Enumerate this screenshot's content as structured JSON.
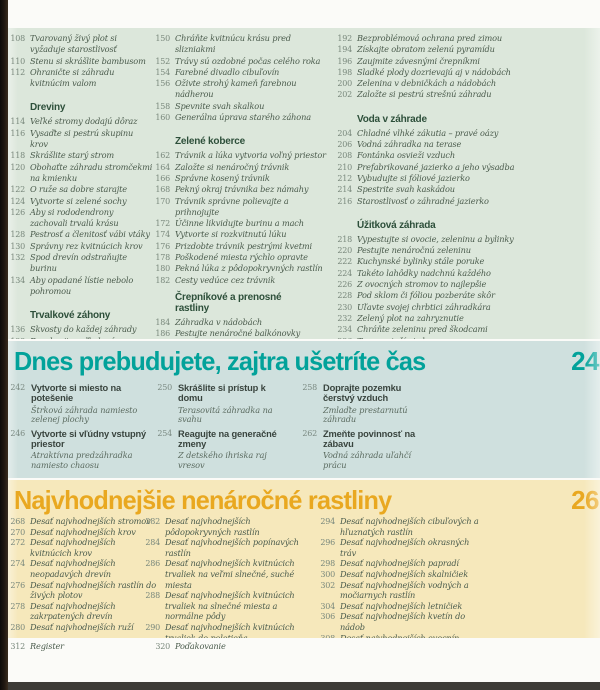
{
  "colors": {
    "top_section_bg": "#dce7db",
    "mid_section_bg": "#cfe0de",
    "mid_accent_teal": "#02a29a",
    "bottom_section_bg": "#f6e8bb",
    "bottom_accent_orange": "#e9a820",
    "entry_text": "#4a5b4c",
    "section_header_text": "#2d4f3a",
    "page_number_text": "#79887c",
    "spine_edge": "#1d1712",
    "bottom_edge": "#3d3b37"
  },
  "toc_top": {
    "col1": [
      {
        "n": "108",
        "t": "Tvarovaný živý plot si vyžaduje starostlivosť"
      },
      {
        "n": "110",
        "t": "Stenu si skrášlite bambusom"
      },
      {
        "n": "112",
        "t": "Ohraničte si záhradu kvitnúcim valom"
      },
      {
        "h": "Dreviny"
      },
      {
        "n": "114",
        "t": "Veľké stromy dodajú dôraz"
      },
      {
        "n": "116",
        "t": "Vysaďte si pestrú skupinu krov"
      },
      {
        "n": "118",
        "t": "Skrášlite starý strom"
      },
      {
        "n": "120",
        "t": "Obohaťte záhradu stromčekmi na kmienku"
      },
      {
        "n": "122",
        "t": "O ruže sa dobre starajte"
      },
      {
        "n": "124",
        "t": "Vytvorte si zelené sochy"
      },
      {
        "n": "126",
        "t": "Aby si rododendrony zachovali trvalú krásu"
      },
      {
        "n": "128",
        "t": "Pestrosť a členitosť vábi vtáky"
      },
      {
        "n": "130",
        "t": "Správny rez kvitnúcich krov"
      },
      {
        "n": "132",
        "t": "Spod drevín odstraňujte burinu"
      },
      {
        "n": "134",
        "t": "Aby opadané lístie nebolo pohromou"
      },
      {
        "h": "Trvalkové záhony"
      },
      {
        "n": "136",
        "t": "Skvosty do každej záhrady"
      },
      {
        "n": "138",
        "t": "Rozohrajte veľkolepú prehliadku"
      },
      {
        "n": "140",
        "t": "Prirodzený záhon na slnečnom mieste"
      },
      {
        "n": "142",
        "t": "Zaplňte medzery a nehostinné miesta"
      },
      {
        "n": "144",
        "t": "Divorastúce trvalky ocenia aj polotieň"
      },
      {
        "n": "146",
        "t": "Romantika ponorená do tieňa"
      },
      {
        "n": "148",
        "t": "Tienistý záhon pohltí lístie"
      }
    ],
    "col2": [
      {
        "n": "150",
        "t": "Chráňte kvitnúcu krásu pred slizniakmi"
      },
      {
        "n": "152",
        "t": "Trávy sú ozdobné počas celého roka"
      },
      {
        "n": "154",
        "t": "Farebné divadlo cibuľovín"
      },
      {
        "n": "156",
        "t": "Oživte strohý kameň farebnou nádherou"
      },
      {
        "n": "158",
        "t": "Spevnite svah skalkou"
      },
      {
        "n": "160",
        "t": "Generálna úprava starého záhona"
      },
      {
        "h": "Zelené koberce"
      },
      {
        "n": "162",
        "t": "Trávnik a lúka vytvoria voľný priestor"
      },
      {
        "n": "164",
        "t": "Založte si nenáročný trávnik"
      },
      {
        "n": "166",
        "t": "Správne kosený trávnik"
      },
      {
        "n": "168",
        "t": "Pekný okraj trávnika bez námahy"
      },
      {
        "n": "170",
        "t": "Trávnik správne polievajte a prihnojujte"
      },
      {
        "n": "172",
        "t": "Účinne likvidujte burinu a mach"
      },
      {
        "n": "174",
        "t": "Vytvorte si rozkvitnutú lúku"
      },
      {
        "n": "176",
        "t": "Prizdobte trávnik pestrými kvetmi"
      },
      {
        "n": "178",
        "t": "Poškodené miesta rýchlo opravte"
      },
      {
        "n": "180",
        "t": "Pekná lúka z pôdopokryvných rastlín"
      },
      {
        "n": "182",
        "t": "Cesty vedúce cez trávnik"
      },
      {
        "h": "Črepníkové a prenosné rastliny"
      },
      {
        "n": "184",
        "t": "Záhradka v nádobách"
      },
      {
        "n": "186",
        "t": "Pestujte nenáročné balkónovky"
      },
      {
        "n": "188",
        "t": "Pestrosť je zaručená!"
      },
      {
        "n": "190",
        "t": "Keď už v črepníku chýba miesto"
      }
    ],
    "col3": [
      {
        "n": "192",
        "t": "Bezproblémová ochrana pred zimou"
      },
      {
        "n": "194",
        "t": "Získajte obratom zelenú pyramídu"
      },
      {
        "n": "196",
        "t": "Zaujmite závesnými črepníkmi"
      },
      {
        "n": "198",
        "t": "Sladké plody dozrievajú aj v nádobách"
      },
      {
        "n": "200",
        "t": "Zelenina v debničkách a nádobách"
      },
      {
        "n": "202",
        "t": "Založte si pestrú strešnú záhradu"
      },
      {
        "h": "Voda v záhrade"
      },
      {
        "n": "204",
        "t": "Chladné vlhké zákutia – pravé oázy"
      },
      {
        "n": "206",
        "t": "Vodná záhradka na terase"
      },
      {
        "n": "208",
        "t": "Fontánka osvieži vzduch"
      },
      {
        "n": "210",
        "t": "Prefabrikované jazierko a jeho výsadba"
      },
      {
        "n": "212",
        "t": "Vybudujte si fóliové jazierko"
      },
      {
        "n": "214",
        "t": "Spestrite svah kaskádou"
      },
      {
        "n": "216",
        "t": "Starostlivosť o záhradné jazierko"
      },
      {
        "h": "Úžitková záhrada"
      },
      {
        "n": "218",
        "t": "Vypestujte si ovocie, zeleninu a bylinky"
      },
      {
        "n": "220",
        "t": "Pestujte nenáročnú zeleninu"
      },
      {
        "n": "222",
        "t": "Kuchynské bylinky stále poruke"
      },
      {
        "n": "224",
        "t": "Takéto lahôdky nadchnú každého"
      },
      {
        "n": "226",
        "t": "Z ovocných stromov to najlepšie"
      },
      {
        "n": "228",
        "t": "Pod sklom či fóliou pozberáte skôr"
      },
      {
        "n": "230",
        "t": "Uľavte svojej chrbtici záhradkára"
      },
      {
        "n": "232",
        "t": "Zelený plot na zahryznutie"
      },
      {
        "n": "234",
        "t": "Chráňte zeleninu pred škodcami"
      },
      {
        "n": "236",
        "t": "Tu sa poteší aj oko"
      },
      {
        "n": "238",
        "t": "Lemy záhonov: pekné a užitočné"
      }
    ]
  },
  "chapter_rebuild": {
    "title": "Dnes prebudujete, zajtra ušetríte čas",
    "page_number": "24",
    "col1": [
      {
        "n": "242",
        "t": "Vytvorte si miesto na potešenie",
        "s": "Štrková záhrada namiesto zelenej plochy"
      },
      {
        "n": "246",
        "t": "Vytvorte si vľúdny vstupný priestor",
        "s": "Atraktívna predzáhradka namiesto chaosu"
      }
    ],
    "col2": [
      {
        "n": "250",
        "t": "Skrášlite si prístup k domu",
        "s": "Terasovitá záhradka na svahu"
      },
      {
        "n": "254",
        "t": "Reagujte na generačné zmeny",
        "s": "Z detského ihriska raj vresov"
      }
    ],
    "col3": [
      {
        "n": "258",
        "t": "Doprajte pozemku čerstvý vzduch",
        "s": "Zmlaďte prestarnutú záhradu"
      },
      {
        "n": "262",
        "t": "Zmeňte povinnosť na zábavu",
        "s": "Vodná záhrada uľahčí prácu"
      }
    ]
  },
  "chapter_plants": {
    "title": "Najvhodnejšie nenáročné rastliny",
    "page_number": "26",
    "col1": [
      {
        "n": "268",
        "t": "Desať najvhodnejších stromov"
      },
      {
        "n": "270",
        "t": "Desať najvhodnejších krov"
      },
      {
        "n": "272",
        "t": "Desať najvhodnejších kvitnúcich krov"
      },
      {
        "n": "274",
        "t": "Desať najvhodnejších neopadavých drevín"
      },
      {
        "n": "276",
        "t": "Desať najvhodnejších rastlín do živých plotov"
      },
      {
        "n": "278",
        "t": "Desať najvhodnejších zakrpatených drevín"
      },
      {
        "n": "280",
        "t": "Desať najvhodnejších ruží"
      }
    ],
    "col2": [
      {
        "n": "282",
        "t": "Desať najvhodnejších pôdopokryvných rastlín"
      },
      {
        "n": "284",
        "t": "Desať najvhodnejších popínavých rastlín"
      },
      {
        "n": "286",
        "t": "Desať najvhodnejších kvitnúcich trvaliek na veľmi slnečné, suché miesta"
      },
      {
        "n": "288",
        "t": "Desať najvhodnejších kvitnúcich trvaliek na slnečné miesta a normálne pôdy"
      },
      {
        "n": "290",
        "t": "Desať najvhodnejších kvitnúcich trvaliek do polotieňa"
      },
      {
        "n": "292",
        "t": "Desať najvhodnejších kvitnúcich trvaliek do tieňa"
      }
    ],
    "col3": [
      {
        "n": "294",
        "t": "Desať najvhodnejších cibuľových a hľuznatých rastlín"
      },
      {
        "n": "296",
        "t": "Desať najvhodnejších okrasných tráv"
      },
      {
        "n": "298",
        "t": "Desať najvhodnejších papradí"
      },
      {
        "n": "300",
        "t": "Desať najvhodnejších skalničiek"
      },
      {
        "n": "302",
        "t": "Desať najvhodnejších vodných a močiarnych rastlín"
      },
      {
        "n": "304",
        "t": "Desať najvhodnejších letničiek"
      },
      {
        "n": "306",
        "t": "Desať najvhodnejších kvetín do nádob"
      },
      {
        "n": "308",
        "t": "Desať najvhodnejších ovocnín"
      },
      {
        "n": "310",
        "t": "Desať najvhodnejších druhov zeleniny"
      }
    ]
  },
  "footer": {
    "items": [
      {
        "n": "312",
        "t": "Register"
      },
      {
        "n": "320",
        "t": "Poďakovanie"
      }
    ]
  }
}
